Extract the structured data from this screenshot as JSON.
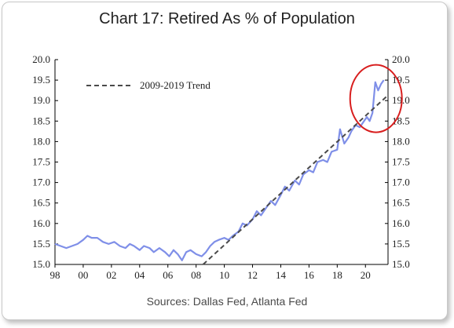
{
  "chart_data": {
    "type": "line",
    "title": "Chart 17: Retired As % of Population",
    "source": "Sources: Dallas Fed, Atlanta Fed",
    "x_ticks": [
      "98",
      "00",
      "02",
      "04",
      "06",
      "08",
      "10",
      "12",
      "14",
      "16",
      "18",
      "20"
    ],
    "y_ticks": [
      "15.0",
      "15.5",
      "16.0",
      "16.5",
      "17.0",
      "17.5",
      "18.0",
      "18.5",
      "19.0",
      "19.5",
      "20.0"
    ],
    "xlim": [
      1998,
      2021.6
    ],
    "ylim": [
      15.0,
      20.0
    ],
    "grid": false,
    "legend_position": "top-left",
    "series": [
      {
        "name": "",
        "color": "#7f8fe8",
        "style": "solid",
        "x": [
          1998.0,
          1998.4,
          1998.8,
          1999.2,
          1999.6,
          2000.0,
          2000.3,
          2000.6,
          2001.0,
          2001.4,
          2001.8,
          2002.2,
          2002.6,
          2003.0,
          2003.3,
          2003.6,
          2004.0,
          2004.3,
          2004.7,
          2005.0,
          2005.4,
          2005.8,
          2006.1,
          2006.4,
          2006.7,
          2007.0,
          2007.3,
          2007.6,
          2008.0,
          2008.4,
          2008.7,
          2009.0,
          2009.3,
          2009.6,
          2010.0,
          2010.3,
          2010.6,
          2011.0,
          2011.3,
          2011.6,
          2012.0,
          2012.3,
          2012.6,
          2013.0,
          2013.3,
          2013.6,
          2014.0,
          2014.3,
          2014.6,
          2015.0,
          2015.3,
          2015.6,
          2016.0,
          2016.3,
          2016.6,
          2017.0,
          2017.3,
          2017.6,
          2018.0,
          2018.2,
          2018.5,
          2018.8,
          2019.0,
          2019.3,
          2019.6,
          2019.9,
          2020.1,
          2020.3,
          2020.5,
          2020.7,
          2020.9,
          2021.1,
          2021.3
        ],
        "y": [
          15.5,
          15.45,
          15.4,
          15.45,
          15.5,
          15.6,
          15.7,
          15.65,
          15.65,
          15.55,
          15.5,
          15.55,
          15.45,
          15.4,
          15.5,
          15.45,
          15.35,
          15.45,
          15.4,
          15.3,
          15.4,
          15.3,
          15.2,
          15.35,
          15.25,
          15.1,
          15.3,
          15.35,
          15.25,
          15.2,
          15.3,
          15.45,
          15.55,
          15.6,
          15.65,
          15.6,
          15.7,
          15.8,
          16.0,
          15.95,
          16.1,
          16.3,
          16.2,
          16.4,
          16.55,
          16.45,
          16.7,
          16.9,
          16.8,
          17.05,
          16.95,
          17.2,
          17.3,
          17.25,
          17.5,
          17.55,
          17.5,
          17.75,
          17.8,
          18.3,
          17.95,
          18.1,
          18.25,
          18.4,
          18.35,
          18.5,
          18.6,
          18.5,
          18.7,
          19.45,
          19.25,
          19.4,
          19.5
        ]
      },
      {
        "name": "2009-2019 Trend",
        "color": "#4a4a4a",
        "style": "dashed",
        "x": [
          2008.5,
          2021.5
        ],
        "y": [
          15.0,
          19.1
        ]
      }
    ],
    "annotation": "red circle highlighting 2020-2021 spike"
  }
}
